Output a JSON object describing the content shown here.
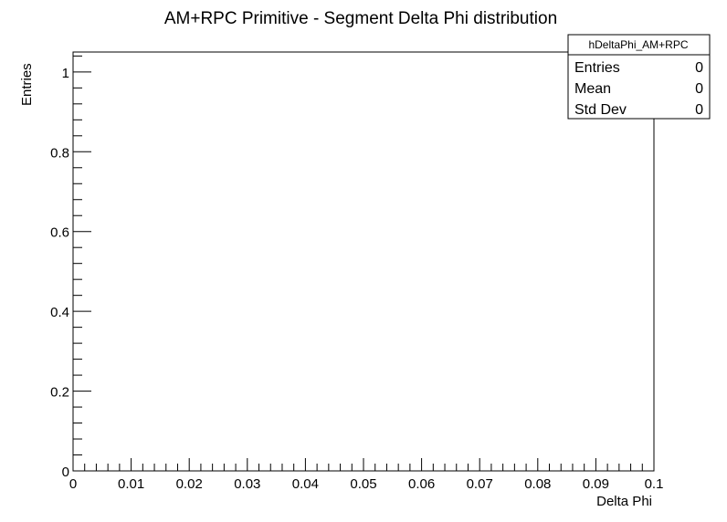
{
  "chart_data": {
    "type": "bar",
    "title": "AM+RPC Primitive - Segment Delta Phi distribution",
    "xlabel": "Delta Phi",
    "ylabel": "Entries",
    "xlim": [
      0,
      0.1
    ],
    "ylim": [
      0,
      1.05
    ],
    "x_ticks": [
      "0",
      "0.01",
      "0.02",
      "0.03",
      "0.04",
      "0.05",
      "0.06",
      "0.07",
      "0.08",
      "0.09",
      "0.1"
    ],
    "y_ticks": [
      "0",
      "0.2",
      "0.4",
      "0.6",
      "0.8",
      "1"
    ],
    "categories": [],
    "values": [],
    "grid": false,
    "legend": "none"
  },
  "stats_box": {
    "name": "hDeltaPhi_AM+RPC",
    "rows": [
      {
        "label": "Entries",
        "value": "0"
      },
      {
        "label": "Mean",
        "value": "0"
      },
      {
        "label": "Std Dev",
        "value": "0"
      }
    ],
    "placement": "top-right"
  }
}
